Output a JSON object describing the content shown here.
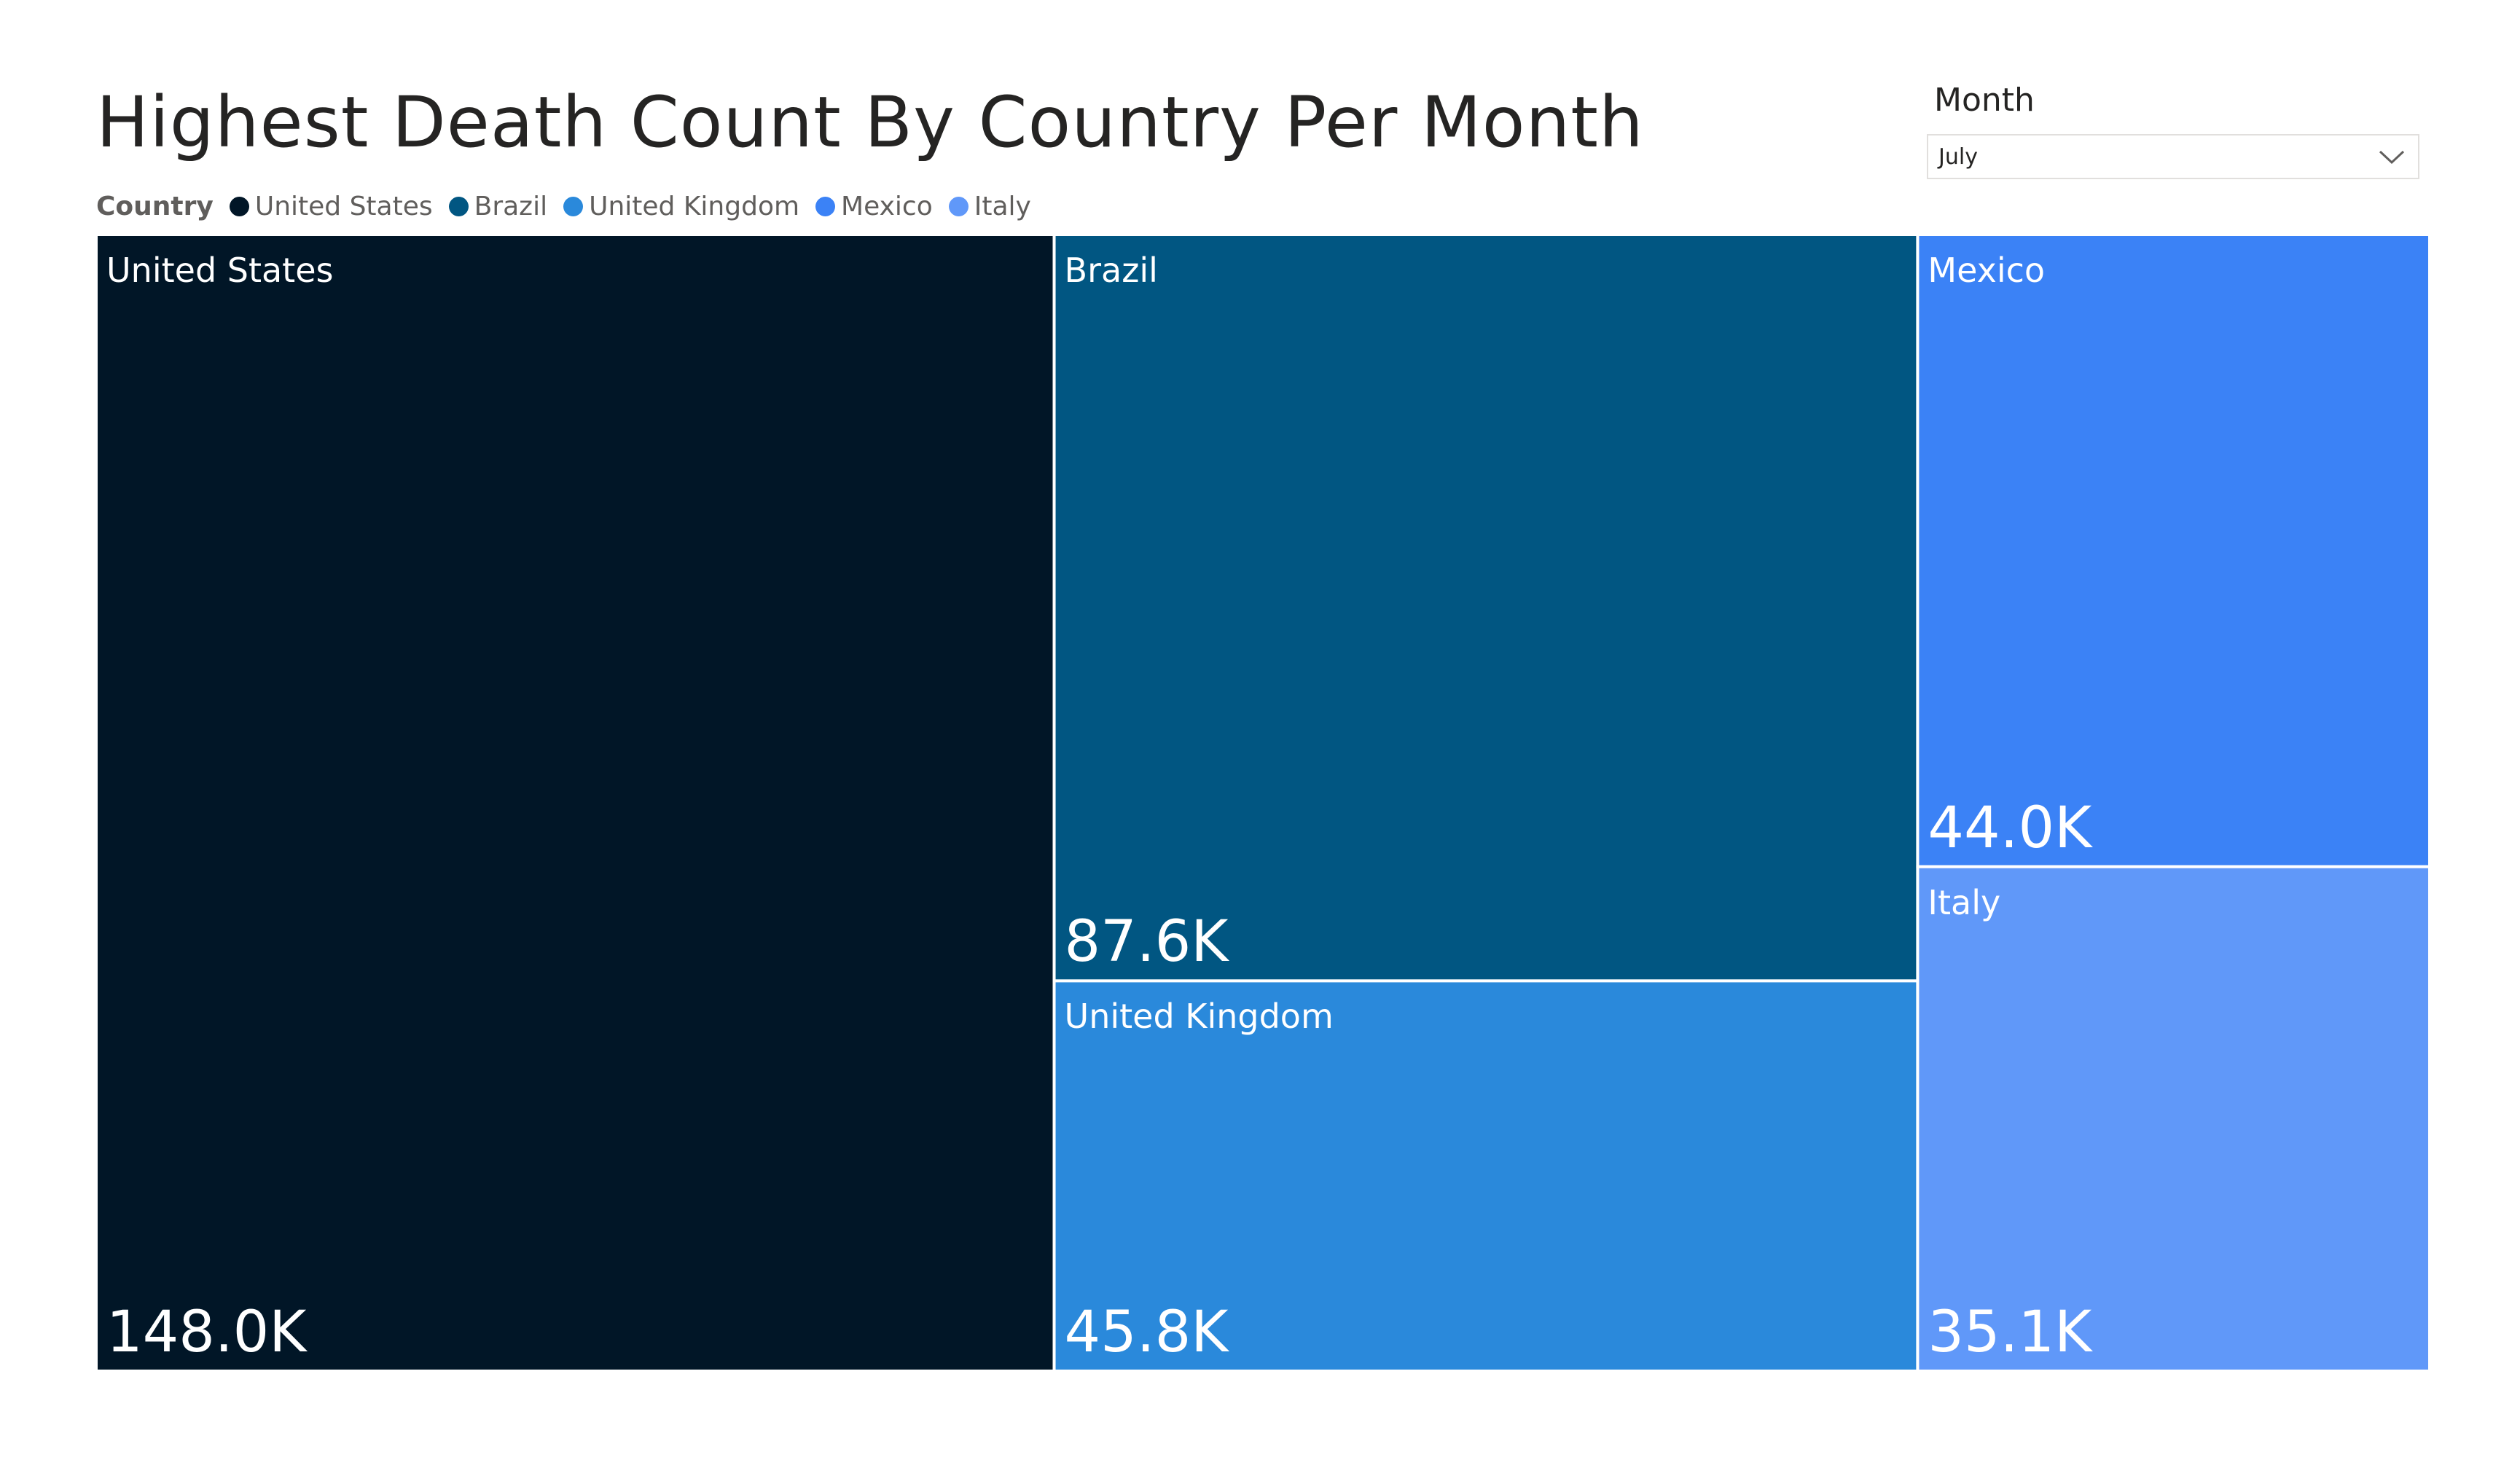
{
  "title": "Highest Death Count By Country Per Month",
  "slicer": {
    "label": "Month",
    "selected": "July"
  },
  "legend_title": "Country",
  "chart_data": {
    "type": "treemap",
    "title": "Highest Death Count By Country Per Month",
    "legend_title": "Country",
    "items": [
      {
        "name": "United States",
        "value": 148.0,
        "label": "148.0K",
        "color": "#011627"
      },
      {
        "name": "Brazil",
        "value": 87.6,
        "label": "87.6K",
        "color": "#015682"
      },
      {
        "name": "United Kingdom",
        "value": 45.8,
        "label": "45.8K",
        "color": "#2a89db"
      },
      {
        "name": "Mexico",
        "value": 44.0,
        "label": "44.0K",
        "color": "#3b82f6"
      },
      {
        "name": "Italy",
        "value": 35.1,
        "label": "35.1K",
        "color": "#6098f9"
      }
    ],
    "value_unit": "K"
  }
}
